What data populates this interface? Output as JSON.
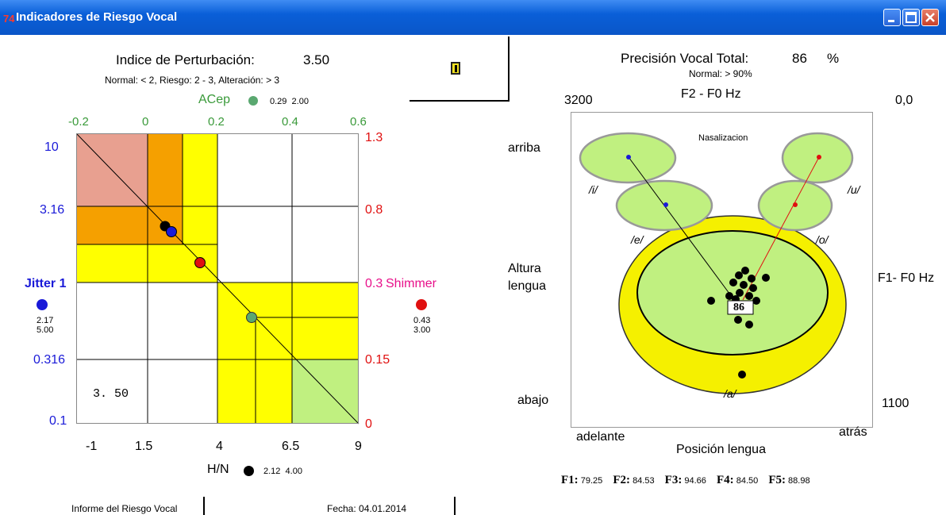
{
  "window": {
    "title": "Indicadores de Riesgo Vocal",
    "app_icon": "app-icon",
    "app_icon_glyph": "74"
  },
  "left": {
    "index_label": "Indice de Perturbación:",
    "index_value": "3.50",
    "norms": "Normal: < 2, Riesgo: 2 - 3, Alteración: > 3",
    "acep_label": "ACep",
    "acep_values": "0.29  2.00",
    "top_ticks": [
      "-0.2",
      "0",
      "0.2",
      "0.4",
      "0.6"
    ],
    "left_ticks": [
      "10",
      "3.16",
      "0.316",
      "0.1"
    ],
    "right_ticks": [
      "1.3",
      "0.8",
      "0.15",
      "0"
    ],
    "shimmer_tick": "0.3",
    "shimmer_label": "Shimmer",
    "bottom_ticks": [
      "-1",
      "1.5",
      "4",
      "6.5",
      "9"
    ],
    "jitter_label": "Jitter 1",
    "jitter_values": [
      "2.17",
      "5.00"
    ],
    "shimmer_values": [
      "0.43",
      "3.00"
    ],
    "hn_label": "H/N",
    "hn_values": "2.12  4.00",
    "inner_value": "3. 50",
    "colors": {
      "light_red": "#e8a090",
      "orange": "#f5a000",
      "yellow": "#ffff00",
      "light_green": "#c0f080",
      "jitter": "#1a1ad8",
      "shimmer": "#e01010",
      "acep": "#5aa870",
      "hn": "#000000"
    }
  },
  "right": {
    "title_label": "Precisión Vocal Total:",
    "title_value": "86",
    "title_unit": "%",
    "normal": "Normal: > 90%",
    "axis_title": "F2 - F0  Hz",
    "top_left": "3200",
    "top_right": "0,0",
    "bottom_right": "1100",
    "right_axis": "F1- F0 Hz",
    "arriba": "arriba",
    "abajo": "abajo",
    "altura1": "Altura",
    "altura2": "lengua",
    "adelante": "adelante",
    "atras": "atrás",
    "posicion": "Posición lengua",
    "nasalizacion": "Nasalizacion",
    "vowels": {
      "i": "/i/",
      "e": "/e/",
      "u": "/u/",
      "o": "/o/",
      "a": "/a/"
    },
    "center_value": "86",
    "formants": [
      {
        "name": "F1",
        "value": "79.25"
      },
      {
        "name": "F2",
        "value": "84.53"
      },
      {
        "name": "F3",
        "value": "94.66"
      },
      {
        "name": "F4",
        "value": "84.50"
      },
      {
        "name": "F5",
        "value": "88.98"
      }
    ]
  },
  "footer": {
    "report": "Informe del Riesgo Vocal",
    "date": "Fecha: 04.01.2014"
  }
}
